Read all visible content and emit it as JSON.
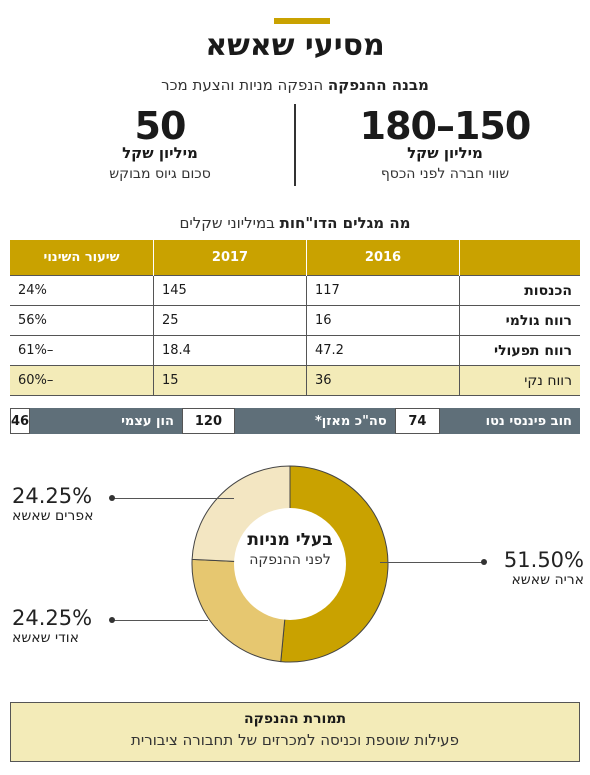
{
  "header": {
    "title": "מסיעי שאשא",
    "subtitle_bold": "מבנה ההנפקה",
    "subtitle_rest": " הנפקה מניות והצעת מכר"
  },
  "stats": {
    "right": {
      "value": "180–150",
      "unit": "מיליון שקל",
      "desc": "שווי חברה לפני הכסף"
    },
    "left": {
      "value": "50",
      "unit": "מיליון שקל",
      "desc": "סכום גיוס מבוקש"
    }
  },
  "section": {
    "title_bold": "מה מגלים הדו\"חות",
    "title_rest": " במיליוני שקלים"
  },
  "table": {
    "headers": [
      "",
      "2016",
      "2017",
      "שיעור השינוי"
    ],
    "rows": [
      {
        "label": "הכנסות",
        "v2016": "117",
        "v2017": "145",
        "change": "24%"
      },
      {
        "label": "רווח גולמי",
        "v2016": "16",
        "v2017": "25",
        "change": "56%"
      },
      {
        "label": "רווח תפעולי",
        "v2016": "47.2",
        "v2017": "18.4",
        "change": "–61%"
      },
      {
        "label": "רווח נקי",
        "v2016": "36",
        "v2017": "15",
        "change": "–60%"
      }
    ]
  },
  "balance": [
    {
      "label": "חוב פיננסי נטו",
      "value": "74"
    },
    {
      "label": "סה\"כ מאזן*",
      "value": "120"
    },
    {
      "label": "הון עצמי",
      "value": "46"
    }
  ],
  "chart_data": {
    "type": "pie",
    "title": "בעלי מניות",
    "subtitle": "לפני ההנפקה",
    "slices": [
      {
        "name": "אריה שאשא",
        "value": 51.5,
        "label": "51.50%",
        "color": "#c9a200"
      },
      {
        "name": "אודי שאשא",
        "value": 24.25,
        "label": "24.25%",
        "color": "#e6c770"
      },
      {
        "name": "אפרים שאשא",
        "value": 24.25,
        "label": "24.25%",
        "color": "#f3e6c2"
      }
    ]
  },
  "footer": {
    "title": "תמורת ההנפקה",
    "text": "פעילות שוטפת וכניסה למכרזים של תחבורה ציבורית"
  },
  "colors": {
    "accent": "#c9a200",
    "highlight": "#f3ebb8",
    "slate": "#5f6f79"
  }
}
